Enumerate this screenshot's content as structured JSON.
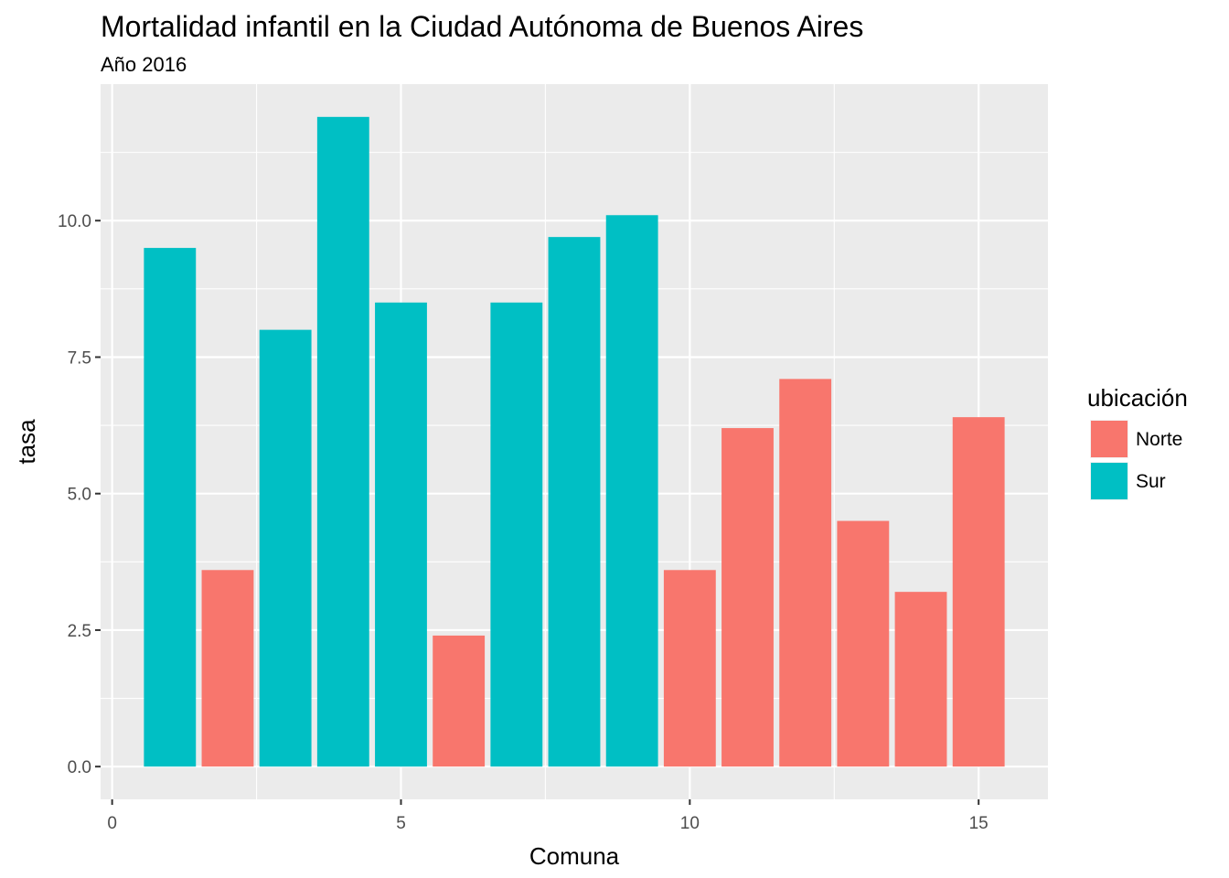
{
  "chart_data": {
    "type": "bar",
    "title": "Mortalidad infantil en la Ciudad Autónoma de Buenos Aires",
    "subtitle": "Año 2016",
    "xlabel": "Comuna",
    "ylabel": "tasa",
    "xlim": [
      -0.2,
      16.2
    ],
    "ylim": [
      -0.6,
      12.5
    ],
    "x_ticks": [
      0,
      5,
      10,
      15
    ],
    "x_tick_labels": [
      "0",
      "5",
      "10",
      "15"
    ],
    "y_ticks": [
      0,
      2.5,
      5,
      7.5,
      10
    ],
    "y_tick_labels": [
      "0.0",
      "2.5",
      "5.0",
      "7.5",
      "10.0"
    ],
    "grid": true,
    "legend": {
      "title": "ubicación",
      "position": "right",
      "entries": [
        {
          "label": "Norte",
          "color": "#F8766D"
        },
        {
          "label": "Sur",
          "color": "#00BFC4"
        }
      ]
    },
    "bars": [
      {
        "x": 1,
        "y": 9.5,
        "group": "Sur"
      },
      {
        "x": 2,
        "y": 3.6,
        "group": "Norte"
      },
      {
        "x": 3,
        "y": 8.0,
        "group": "Sur"
      },
      {
        "x": 4,
        "y": 11.9,
        "group": "Sur"
      },
      {
        "x": 5,
        "y": 8.5,
        "group": "Sur"
      },
      {
        "x": 6,
        "y": 2.4,
        "group": "Norte"
      },
      {
        "x": 7,
        "y": 8.5,
        "group": "Sur"
      },
      {
        "x": 8,
        "y": 9.7,
        "group": "Sur"
      },
      {
        "x": 9,
        "y": 10.1,
        "group": "Sur"
      },
      {
        "x": 10,
        "y": 3.6,
        "group": "Norte"
      },
      {
        "x": 11,
        "y": 6.2,
        "group": "Norte"
      },
      {
        "x": 12,
        "y": 7.1,
        "group": "Norte"
      },
      {
        "x": 13,
        "y": 4.5,
        "group": "Norte"
      },
      {
        "x": 14,
        "y": 3.2,
        "group": "Norte"
      },
      {
        "x": 15,
        "y": 6.4,
        "group": "Norte"
      }
    ]
  }
}
